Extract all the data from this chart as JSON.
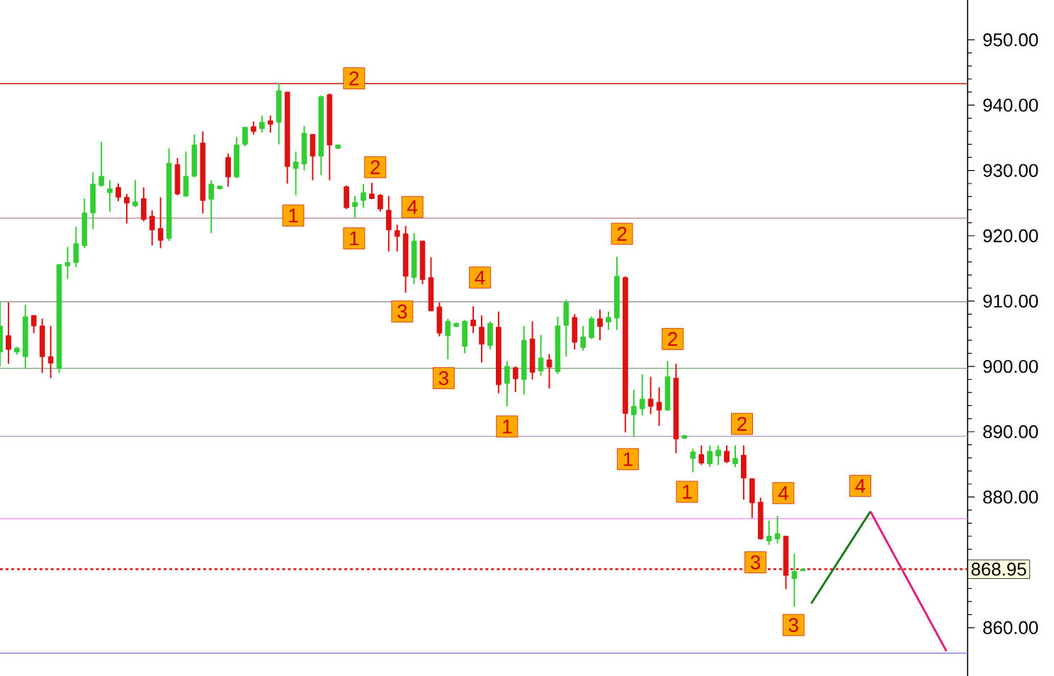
{
  "chart_data": {
    "type": "candlestick",
    "categories": [
      null,
      null,
      null,
      null,
      null,
      null,
      null,
      null,
      null,
      null,
      null,
      null,
      null,
      null,
      null,
      null,
      null,
      null,
      null,
      null,
      null,
      null,
      null,
      null,
      null,
      null,
      null,
      null,
      null,
      null,
      null,
      null,
      null,
      null,
      null,
      null,
      null,
      null,
      null,
      null,
      null,
      null,
      null,
      null,
      null,
      null,
      null,
      null,
      null,
      null,
      null,
      null,
      null,
      null,
      null,
      null,
      null,
      null,
      null,
      null,
      null,
      null,
      null,
      null,
      null,
      null,
      null,
      null,
      null,
      null,
      null,
      null,
      null,
      null,
      null,
      null,
      null,
      null,
      null,
      null,
      null,
      null,
      null,
      null,
      null,
      null,
      null,
      null,
      null,
      null,
      null,
      null,
      null,
      null,
      null,
      null,
      null,
      null,
      null,
      null,
      null,
      null,
      null,
      null,
      null,
      null,
      null,
      null,
      null,
      null,
      null,
      null,
      null,
      null,
      null
    ],
    "ohlc": [
      [
        902.2,
        910.0,
        900.0,
        906.2
      ],
      [
        904.7,
        909.8,
        900.4,
        902.6
      ],
      [
        902.2,
        903.0,
        901.8,
        902.8
      ],
      [
        901.5,
        909.4,
        899.7,
        907.6
      ],
      [
        907.8,
        907.8,
        905.1,
        906.2
      ],
      [
        906.2,
        907.3,
        899.0,
        901.5
      ],
      [
        901.5,
        906.2,
        898.2,
        900.5
      ],
      [
        899.7,
        915.6,
        899.0,
        915.6
      ],
      [
        915.4,
        918.3,
        913.4,
        915.9
      ],
      [
        915.9,
        921.4,
        915.2,
        918.8
      ],
      [
        918.5,
        925.7,
        918.1,
        923.5
      ],
      [
        923.5,
        929.7,
        921.0,
        927.9
      ],
      [
        927.7,
        934.4,
        927.5,
        929.1
      ],
      [
        926.6,
        928.5,
        923.7,
        927.2
      ],
      [
        927.4,
        928.0,
        925.3,
        925.9
      ],
      [
        925.9,
        926.4,
        921.9,
        925.0
      ],
      [
        924.6,
        928.5,
        924.4,
        925.2
      ],
      [
        925.7,
        927.4,
        922.2,
        922.5
      ],
      [
        923.0,
        923.9,
        918.5,
        920.9
      ],
      [
        921.1,
        925.9,
        918.1,
        919.3
      ],
      [
        919.6,
        933.4,
        919.2,
        931.1
      ],
      [
        930.9,
        931.9,
        926.2,
        926.4
      ],
      [
        926.1,
        932.9,
        925.9,
        929.1
      ],
      [
        929.1,
        935.5,
        929.0,
        933.9
      ],
      [
        934.2,
        936.0,
        923.4,
        925.4
      ],
      [
        925.6,
        928.5,
        920.4,
        927.9
      ],
      [
        927.2,
        927.7,
        927.1,
        927.6
      ],
      [
        932.0,
        932.6,
        927.5,
        929.0
      ],
      [
        929.0,
        935.1,
        928.8,
        933.9
      ],
      [
        934.0,
        936.7,
        933.7,
        936.6
      ],
      [
        936.7,
        937.5,
        935.5,
        936.0
      ],
      [
        936.4,
        938.4,
        935.8,
        937.4
      ],
      [
        937.6,
        938.4,
        935.8,
        937.1
      ],
      [
        937.4,
        943.4,
        934.0,
        942.2
      ],
      [
        942.0,
        942.0,
        928.0,
        930.6
      ],
      [
        930.3,
        932.9,
        926.2,
        931.3
      ],
      [
        931.0,
        936.8,
        930.0,
        935.7
      ],
      [
        935.5,
        935.6,
        928.5,
        932.2
      ],
      [
        932.2,
        941.5,
        929.3,
        941.3
      ],
      [
        941.6,
        941.8,
        928.5,
        933.9
      ],
      [
        933.4,
        934.0,
        933.3,
        933.9
      ],
      [
        927.5,
        927.7,
        924.1,
        924.3
      ],
      [
        924.5,
        926.1,
        922.8,
        925.1
      ],
      [
        925.4,
        927.9,
        924.3,
        926.6
      ],
      [
        926.4,
        928.1,
        925.6,
        925.7
      ],
      [
        926.2,
        926.4,
        923.7,
        924.1
      ],
      [
        923.9,
        926.1,
        917.6,
        920.9
      ],
      [
        920.8,
        921.7,
        917.6,
        919.9
      ],
      [
        920.3,
        921.5,
        911.3,
        913.8
      ],
      [
        913.6,
        920.4,
        912.6,
        919.2
      ],
      [
        919.2,
        919.2,
        912.6,
        913.3
      ],
      [
        913.6,
        916.7,
        908.5,
        908.5
      ],
      [
        909.1,
        909.8,
        904.6,
        905.1
      ],
      [
        904.7,
        907.3,
        901.1,
        906.9
      ],
      [
        906.1,
        906.7,
        906.0,
        906.6
      ],
      [
        903.1,
        907.1,
        902.0,
        906.9
      ],
      [
        907.1,
        909.2,
        905.1,
        906.2
      ],
      [
        906.0,
        907.8,
        900.6,
        903.4
      ],
      [
        903.2,
        906.9,
        902.6,
        906.6
      ],
      [
        906.0,
        908.4,
        895.9,
        897.2
      ],
      [
        897.4,
        900.8,
        893.9,
        900.0
      ],
      [
        899.8,
        900.0,
        896.1,
        898.1
      ],
      [
        898.0,
        906.2,
        895.7,
        904.0
      ],
      [
        904.2,
        906.9,
        898.0,
        899.1
      ],
      [
        899.3,
        904.8,
        898.6,
        901.3
      ],
      [
        901.0,
        901.9,
        896.6,
        899.9
      ],
      [
        899.2,
        907.6,
        898.8,
        906.2
      ],
      [
        906.3,
        910.2,
        901.5,
        909.8
      ],
      [
        907.5,
        908.0,
        902.6,
        903.7
      ],
      [
        902.9,
        906.2,
        902.4,
        904.5
      ],
      [
        904.4,
        907.6,
        904.2,
        907.3
      ],
      [
        907.3,
        908.7,
        904.0,
        906.1
      ],
      [
        906.8,
        908.4,
        905.6,
        907.5
      ],
      [
        907.4,
        916.8,
        905.6,
        913.8
      ],
      [
        913.6,
        913.8,
        889.9,
        892.8
      ],
      [
        892.6,
        896.4,
        889.2,
        893.9
      ],
      [
        893.5,
        898.8,
        892.5,
        895.0
      ],
      [
        895.0,
        898.4,
        892.7,
        893.9
      ],
      [
        894.5,
        896.8,
        890.9,
        893.3
      ],
      [
        893.3,
        900.8,
        893.2,
        898.4
      ],
      [
        898.2,
        900.4,
        886.7,
        888.9
      ],
      [
        889.0,
        889.5,
        888.9,
        889.4
      ],
      [
        885.9,
        887.4,
        883.8,
        886.9
      ],
      [
        886.5,
        887.9,
        884.9,
        885.2
      ],
      [
        885.1,
        887.9,
        884.6,
        887.0
      ],
      [
        886.3,
        887.9,
        884.9,
        887.2
      ],
      [
        887.0,
        887.9,
        885.2,
        885.4
      ],
      [
        885.1,
        887.9,
        884.6,
        885.9
      ],
      [
        886.4,
        887.9,
        879.6,
        882.9
      ],
      [
        882.8,
        882.8,
        876.8,
        879.1
      ],
      [
        879.2,
        879.9,
        873.5,
        873.6
      ],
      [
        873.3,
        876.4,
        872.7,
        874.0
      ],
      [
        873.6,
        877.1,
        872.9,
        874.4
      ],
      [
        874.0,
        874.0,
        865.9,
        868.0
      ],
      [
        867.5,
        871.3,
        863.2,
        868.6
      ],
      [
        868.7,
        869.1,
        868.7,
        868.95
      ],
      null,
      null,
      null,
      null,
      null,
      null,
      null,
      null,
      null,
      null,
      null,
      null,
      null,
      null,
      null,
      null,
      null,
      null,
      null
    ],
    "colors": [
      "#33cc33",
      "#dd1111",
      "#33cc33",
      "#33cc33",
      "#dd1111",
      "#dd1111",
      "#dd1111",
      "#33cc33",
      "#33cc33",
      "#33cc33",
      "#33cc33",
      "#33cc33",
      "#33cc33",
      "#33cc33",
      "#dd1111",
      "#dd1111",
      "#33cc33",
      "#dd1111",
      "#dd1111",
      "#dd1111",
      "#33cc33",
      "#dd1111",
      "#33cc33",
      "#33cc33",
      "#dd1111",
      "#33cc33",
      "#33cc33",
      "#dd1111",
      "#33cc33",
      "#33cc33",
      "#dd1111",
      "#33cc33",
      "#dd1111",
      "#33cc33",
      "#dd1111",
      "#33cc33",
      "#33cc33",
      "#dd1111",
      "#33cc33",
      "#dd1111",
      "#33cc33",
      "#dd1111",
      "#33cc33",
      "#33cc33",
      "#dd1111",
      "#dd1111",
      "#dd1111",
      "#dd1111",
      "#dd1111",
      "#33cc33",
      "#dd1111",
      "#dd1111",
      "#dd1111",
      "#33cc33",
      "#33cc33",
      "#33cc33",
      "#dd1111",
      "#dd1111",
      "#33cc33",
      "#dd1111",
      "#33cc33",
      "#dd1111",
      "#33cc33",
      "#dd1111",
      "#33cc33",
      "#dd1111",
      "#33cc33",
      "#33cc33",
      "#dd1111",
      "#33cc33",
      "#33cc33",
      "#dd1111",
      "#33cc33",
      "#33cc33",
      "#dd1111",
      "#33cc33",
      "#33cc33",
      "#dd1111",
      "#dd1111",
      "#33cc33",
      "#dd1111",
      "#33cc33",
      "#33cc33",
      "#dd1111",
      "#33cc33",
      "#33cc33",
      "#dd1111",
      "#33cc33",
      "#dd1111",
      "#dd1111",
      "#dd1111",
      "#33cc33",
      "#33cc33",
      "#dd1111",
      "#33cc33",
      "#33cc33",
      null,
      null,
      null,
      null,
      null,
      null,
      null,
      null,
      null,
      null,
      null,
      null,
      null,
      null,
      null,
      null,
      null,
      null,
      null
    ],
    "series": [
      {
        "type": "line",
        "color": "#1a7a1a",
        "values": [
          null,
          null,
          null,
          null,
          null,
          null,
          null,
          null,
          null,
          null,
          null,
          null,
          null,
          null,
          null,
          null,
          null,
          null,
          null,
          null,
          null,
          null,
          null,
          null,
          null,
          null,
          null,
          null,
          null,
          null,
          null,
          null,
          null,
          null,
          null,
          null,
          null,
          null,
          null,
          null,
          null,
          null,
          null,
          null,
          null,
          null,
          null,
          null,
          null,
          null,
          null,
          null,
          null,
          null,
          null,
          null,
          null,
          null,
          null,
          null,
          null,
          null,
          null,
          null,
          null,
          null,
          null,
          null,
          null,
          null,
          null,
          null,
          null,
          null,
          null,
          null,
          null,
          null,
          null,
          null,
          null,
          null,
          null,
          null,
          null,
          null,
          null,
          null,
          null,
          null,
          null,
          null,
          null,
          null,
          null,
          null,
          863.7,
          null,
          null,
          null,
          null,
          null,
          null,
          877.8,
          null,
          null,
          null,
          null,
          null,
          null,
          null,
          null,
          null,
          null,
          null
        ]
      },
      {
        "type": "line",
        "color": "#e0207f",
        "values": [
          null,
          null,
          null,
          null,
          null,
          null,
          null,
          null,
          null,
          null,
          null,
          null,
          null,
          null,
          null,
          null,
          null,
          null,
          null,
          null,
          null,
          null,
          null,
          null,
          null,
          null,
          null,
          null,
          null,
          null,
          null,
          null,
          null,
          null,
          null,
          null,
          null,
          null,
          null,
          null,
          null,
          null,
          null,
          null,
          null,
          null,
          null,
          null,
          null,
          null,
          null,
          null,
          null,
          null,
          null,
          null,
          null,
          null,
          null,
          null,
          null,
          null,
          null,
          null,
          null,
          null,
          null,
          null,
          null,
          null,
          null,
          null,
          null,
          null,
          null,
          null,
          null,
          null,
          null,
          null,
          null,
          null,
          null,
          null,
          null,
          null,
          null,
          null,
          null,
          null,
          null,
          null,
          null,
          null,
          null,
          null,
          null,
          null,
          null,
          null,
          null,
          null,
          null,
          877.8,
          null,
          null,
          null,
          null,
          null,
          null,
          null,
          null,
          856.4,
          null,
          null
        ]
      }
    ],
    "marker": "none",
    "ylim": [
      852.6,
      956.1
    ],
    "yticks": [
      {
        "value": 860,
        "label": "860.00"
      },
      {
        "value": 870,
        "label": null
      },
      {
        "value": 880,
        "label": "880.00"
      },
      {
        "value": 890,
        "label": "890.00"
      },
      {
        "value": 900,
        "label": "900.00"
      },
      {
        "value": 910,
        "label": "910.00"
      },
      {
        "value": 920,
        "label": "920.00"
      },
      {
        "value": 930,
        "label": "930.00"
      },
      {
        "value": 940,
        "label": "940.00"
      },
      {
        "value": 950,
        "label": "950.00"
      }
    ],
    "tick_labels": "y",
    "ref_lines": [
      {
        "axis": "y",
        "value": 943.3,
        "color": "#c01010"
      },
      {
        "axis": "y",
        "value": 922.7,
        "color": "#b08080"
      },
      {
        "axis": "y",
        "value": 909.9,
        "color": "#808080"
      },
      {
        "axis": "y",
        "value": 899.7,
        "color": "#70a070"
      },
      {
        "axis": "y",
        "value": 889.3,
        "color": "#b8a8c8"
      },
      {
        "axis": "y",
        "value": 876.7,
        "color": "#ff80ff"
      },
      {
        "axis": "y",
        "value": 868.95,
        "color": "#dd1111",
        "line_style": "dotted",
        "label": "868.95"
      },
      {
        "axis": "y",
        "value": 856.1,
        "color": "#8080e0"
      }
    ],
    "annotations": [
      "2",
      "1",
      "2",
      "1",
      "4",
      "3",
      "4",
      "3",
      "1",
      "2",
      "2",
      "1",
      "2",
      "1",
      "4",
      "3",
      "3",
      "4"
    ]
  }
}
